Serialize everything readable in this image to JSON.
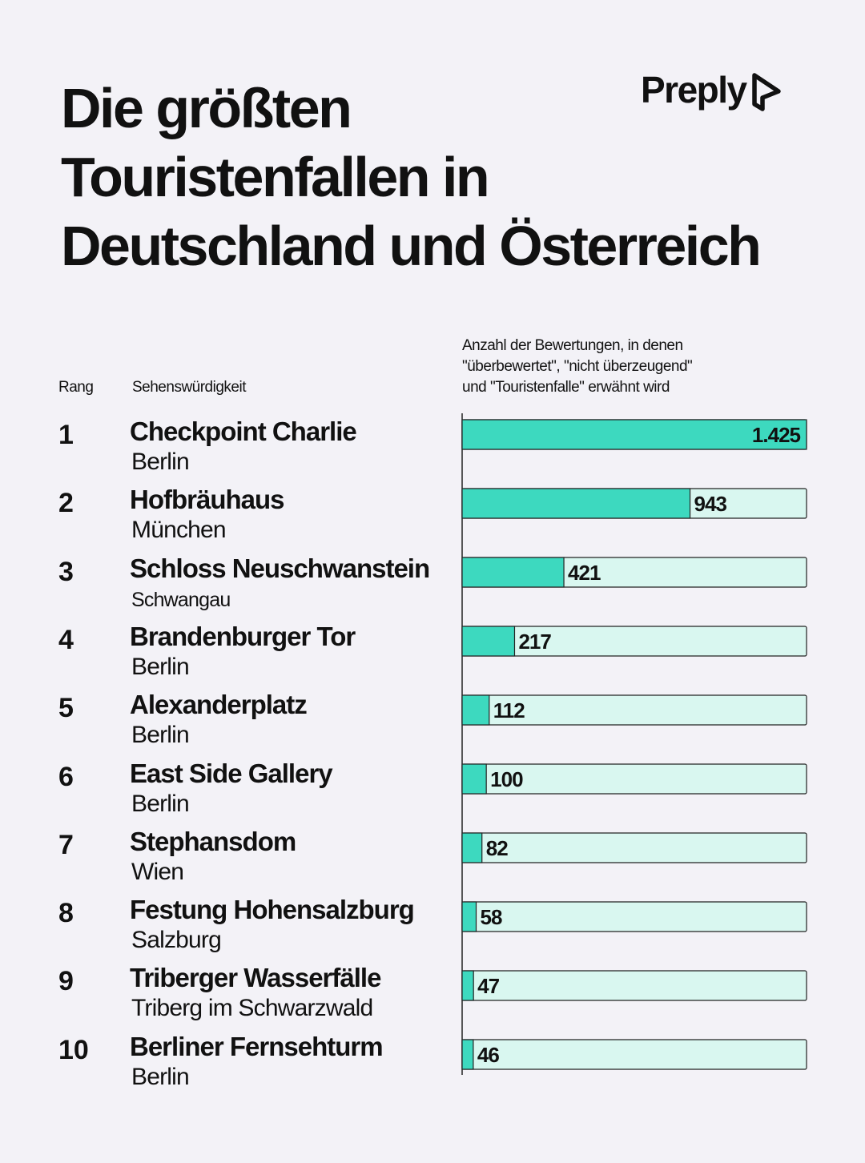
{
  "title_lines": [
    "Die größten",
    "Touristenfallen in",
    "Deutschland und Österreich"
  ],
  "logo": {
    "text": "Preply",
    "icon": "preply-logo-icon"
  },
  "headers": {
    "rank": "Rang",
    "sight": "Sehenswürdigkeit",
    "count_lines": [
      "Anzahl der Bewertungen, in denen",
      "\"überbewertet\", \"nicht überzeugend\"",
      "und \"Touristenfalle\" erwähnt wird"
    ]
  },
  "rows": [
    {
      "rank": "1",
      "name": "Checkpoint Charlie",
      "city": "Berlin",
      "value_label": "1.425"
    },
    {
      "rank": "2",
      "name": "Hofbräuhaus",
      "city": "München",
      "value_label": "943"
    },
    {
      "rank": "3",
      "name": "Schloss Neuschwanstein",
      "city": "Schwangau",
      "value_label": "421"
    },
    {
      "rank": "4",
      "name": "Brandenburger Tor",
      "city": "Berlin",
      "value_label": "217"
    },
    {
      "rank": "5",
      "name": "Alexanderplatz",
      "city": "Berlin",
      "value_label": "112"
    },
    {
      "rank": "6",
      "name": "East Side Gallery",
      "city": "Berlin",
      "value_label": "100"
    },
    {
      "rank": "7",
      "name": "Stephansdom",
      "city": "Wien",
      "value_label": "82"
    },
    {
      "rank": "8",
      "name": "Festung Hohensalzburg",
      "city": "Salzburg",
      "value_label": "58"
    },
    {
      "rank": "9",
      "name": "Triberger Wasserfälle",
      "city": "Triberg im Schwarzwald",
      "value_label": "47"
    },
    {
      "rank": "10",
      "name": "Berliner Fernsehturm",
      "city": "Berlin",
      "value_label": "46"
    }
  ],
  "chart_data": {
    "type": "bar",
    "orientation": "horizontal",
    "categories": [
      "Checkpoint Charlie",
      "Hofbräuhaus",
      "Schloss Neuschwanstein",
      "Brandenburger Tor",
      "Alexanderplatz",
      "East Side Gallery",
      "Stephansdom",
      "Festung Hohensalzburg",
      "Triberger Wasserfälle",
      "Berliner Fernsehturm"
    ],
    "values": [
      1425,
      943,
      421,
      217,
      112,
      100,
      82,
      58,
      47,
      46
    ],
    "value_labels": [
      "1.425",
      "943",
      "421",
      "217",
      "112",
      "100",
      "82",
      "58",
      "47",
      "46"
    ],
    "title": "Anzahl der Bewertungen, in denen \"überbewertet\", \"nicht überzeugend\" und \"Touristenfalle\" erwähnt wird",
    "grid": false,
    "legend": "none",
    "colors": {
      "fill": "#3dd9bf",
      "track": "#d9f7f0",
      "stroke": "#222222"
    }
  }
}
